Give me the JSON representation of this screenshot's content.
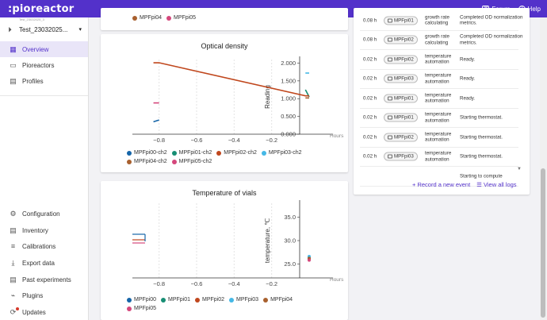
{
  "topbar": {
    "logo": ":pioreactor",
    "forum": "Forum",
    "help": "Help"
  },
  "sidebar": {
    "experiment": "Test_23032025...",
    "experiment_sub": "Test_23032025_3",
    "items": [
      {
        "label": "Overview",
        "icon": "grid-icon",
        "glyph": "▦"
      },
      {
        "label": "Pioreactors",
        "icon": "box-icon",
        "glyph": "▭"
      },
      {
        "label": "Profiles",
        "icon": "document-icon",
        "glyph": "▤"
      }
    ],
    "bottom_items": [
      {
        "label": "Configuration",
        "icon": "gear-icon",
        "glyph": "⚙"
      },
      {
        "label": "Inventory",
        "icon": "inventory-icon",
        "glyph": "▤"
      },
      {
        "label": "Calibrations",
        "icon": "tune-icon",
        "glyph": "≡"
      },
      {
        "label": "Export data",
        "icon": "download-icon",
        "glyph": "⤓"
      },
      {
        "label": "Past experiments",
        "icon": "history-icon",
        "glyph": "▤"
      },
      {
        "label": "Plugins",
        "icon": "plug-icon",
        "glyph": "⌁"
      },
      {
        "label": "Updates",
        "icon": "update-icon",
        "glyph": "⟳"
      }
    ]
  },
  "top_legend_partial": [
    "MPFpi04",
    "MPFpi05"
  ],
  "colors": {
    "brand": "#5331ca",
    "MPFpi00": "#1565a8",
    "MPFpi01": "#178e74",
    "MPFpi02": "#c0471d",
    "MPFpi03": "#45b8e6",
    "MPFpi04": "#a8602e",
    "MPFpi05": "#d5477c"
  },
  "od_chart": {
    "title": "Optical density",
    "ylabel": "Reading",
    "xlabel_unit": "Hours",
    "chart_data": {
      "type": "line",
      "x_ticks": [
        -0.8,
        -0.6,
        -0.4,
        -0.2
      ],
      "y_ticks": [
        "0.000",
        "0.500",
        "1.000",
        "1.500",
        "2.000"
      ],
      "ylim": [
        0,
        2.1
      ],
      "series": [
        {
          "name": "MPFpi00-ch2",
          "color": "#1565a8",
          "points": [
            [
              -0.83,
              0.35
            ],
            [
              -0.8,
              0.4
            ]
          ]
        },
        {
          "name": "MPFpi01-ch2",
          "color": "#178e74",
          "points": [
            [
              -0.02,
              1.25
            ],
            [
              0.0,
              1.05
            ]
          ]
        },
        {
          "name": "MPFpi02-ch2",
          "color": "#c0471d",
          "points": [
            [
              -0.83,
              2.01
            ],
            [
              -0.8,
              2.01
            ],
            [
              -0.02,
              1.08
            ],
            [
              0.0,
              1.08
            ]
          ]
        },
        {
          "name": "MPFpi03-ch2",
          "color": "#45b8e6",
          "points": [
            [
              -0.02,
              1.72
            ],
            [
              0.0,
              1.72
            ]
          ]
        },
        {
          "name": "MPFpi04-ch2",
          "color": "#a8602e",
          "points": [
            [
              -0.02,
              1.02
            ],
            [
              0.0,
              1.02
            ]
          ]
        },
        {
          "name": "MPFpi05-ch2",
          "color": "#d5477c",
          "points": [
            [
              -0.83,
              0.88
            ],
            [
              -0.8,
              0.88
            ]
          ]
        }
      ]
    },
    "legend": [
      "MPFpi00-ch2",
      "MPFpi01-ch2",
      "MPFpi02-ch2",
      "MPFpi03-ch2",
      "MPFpi04-ch2",
      "MPFpi05-ch2"
    ]
  },
  "temp_chart": {
    "title": "Temperature of vials",
    "ylabel": "temperature, ℃",
    "xlabel_unit": "Hours",
    "chart_data": {
      "type": "scatter",
      "x_ticks": [
        -0.8,
        -0.6,
        -0.4,
        -0.2
      ],
      "y_ticks": [
        "25.0",
        "30.0",
        "35.0"
      ],
      "ylim": [
        22,
        38
      ],
      "series": [
        {
          "name": "MPFpi00",
          "color": "#1565a8",
          "points": [
            [
              0.0,
              26.3
            ]
          ]
        },
        {
          "name": "MPFpi01",
          "color": "#178e74",
          "points": [
            [
              0.0,
              26.0
            ]
          ]
        },
        {
          "name": "MPFpi02",
          "color": "#c0471d",
          "points": [
            [
              0.0,
              26.1
            ]
          ]
        },
        {
          "name": "MPFpi03",
          "color": "#45b8e6",
          "points": [
            [
              0.0,
              26.6
            ]
          ]
        },
        {
          "name": "MPFpi04",
          "color": "#a8602e",
          "points": [
            [
              0.0,
              26.2
            ]
          ]
        },
        {
          "name": "MPFpi05",
          "color": "#d5477c",
          "points": [
            [
              0.0,
              25.8
            ]
          ]
        }
      ]
    },
    "legend": [
      "MPFpi00",
      "MPFpi01",
      "MPFpi02",
      "MPFpi03",
      "MPFpi04",
      "MPFpi05"
    ]
  },
  "event_log": {
    "rows": [
      {
        "time": "0.08 h",
        "unit": "MPFpi01",
        "task": "growth rate calculating",
        "msg": "Completed OD normalization metrics."
      },
      {
        "time": "0.08 h",
        "unit": "MPFpi02",
        "task": "growth rate calculating",
        "msg": "Completed OD normalization metrics."
      },
      {
        "time": "0.02 h",
        "unit": "MPFpi02",
        "task": "temperature automation",
        "msg": "Ready."
      },
      {
        "time": "0.02 h",
        "unit": "MPFpi03",
        "task": "temperature automation",
        "msg": "Ready."
      },
      {
        "time": "0.02 h",
        "unit": "MPFpi01",
        "task": "temperature automation",
        "msg": "Ready."
      },
      {
        "time": "0.02 h",
        "unit": "MPFpi01",
        "task": "temperature automation",
        "msg": "Starting thermostat."
      },
      {
        "time": "0.02 h",
        "unit": "MPFpi02",
        "task": "temperature automation",
        "msg": "Starting thermostat."
      },
      {
        "time": "0.02 h",
        "unit": "MPFpi03",
        "task": "temperature automation",
        "msg": "Starting thermostat."
      },
      {
        "time": "",
        "unit": "",
        "task": "",
        "msg": "Starting to compute"
      }
    ],
    "record_event": "+ Record a new event",
    "view_all": "View all logs"
  }
}
